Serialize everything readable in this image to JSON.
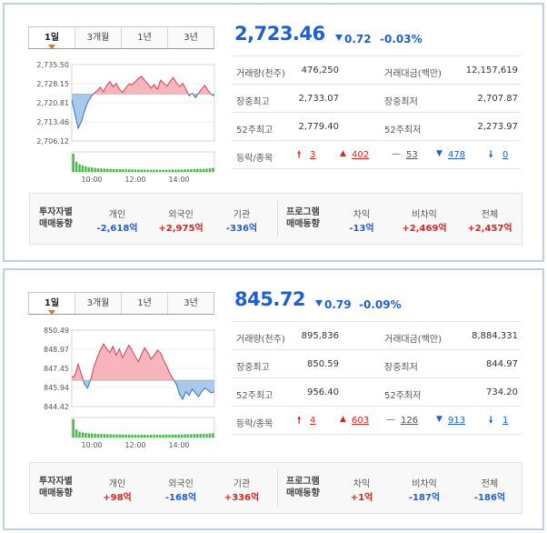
{
  "panels": [
    {
      "tabs": [
        "1일",
        "3개월",
        "1년",
        "3년"
      ],
      "price": "2,723.46",
      "change": "0.72",
      "change_pct": "-0.03%",
      "stats": {
        "volume_label": "거래량(천주)",
        "volume": "476,250",
        "amount_label": "거래대금(백만)",
        "amount": "12,157,619",
        "day_high_label": "장중최고",
        "day_high": "2,733.07",
        "day_low_label": "장중최저",
        "day_low": "2,707.87",
        "w52_high_label": "52주최고",
        "w52_high": "2,779.40",
        "w52_low_label": "52주최저",
        "w52_low": "2,273.97",
        "adv_label": "등락/종목",
        "upper_limit": "3",
        "up": "402",
        "flat": "53",
        "down": "478",
        "lower_limit": "0"
      },
      "investor": {
        "title1": "투자자별",
        "title2": "매매동향",
        "indiv_label": "개인",
        "indiv": "-2,618억",
        "foreign_label": "외국인",
        "foreign": "+2,975억",
        "inst_label": "기관",
        "inst": "-336억",
        "prog1": "프로그램",
        "prog2": "매매동향",
        "arb_label": "차익",
        "arb": "-13억",
        "nonarb_label": "비차익",
        "nonarb": "+2,469억",
        "total_label": "전체",
        "total": "+2,457억"
      },
      "chart_data": {
        "type": "area",
        "y_ticks": [
          "2,735.50",
          "2,728.15",
          "2,720.81",
          "2,713.46",
          "2,706.12"
        ],
        "ylim": [
          2706.12,
          2735.5
        ],
        "baseline": 2724.18,
        "x_ticks": [
          "10:00",
          "12:00",
          "14:00"
        ],
        "values": [
          2722.0,
          2716.5,
          2711.0,
          2713.5,
          2717.5,
          2721.0,
          2723.0,
          2724.5,
          2725.5,
          2726.8,
          2725.0,
          2727.5,
          2729.0,
          2727.0,
          2728.2,
          2726.0,
          2724.8,
          2726.5,
          2728.0,
          2727.8,
          2728.9,
          2730.2,
          2731.0,
          2729.5,
          2728.0,
          2726.5,
          2727.8,
          2726.0,
          2729.5,
          2728.4,
          2727.2,
          2729.0,
          2730.5,
          2728.5,
          2727.0,
          2728.3,
          2726.0,
          2723.5,
          2724.5,
          2722.8,
          2724.5,
          2726.2,
          2727.5,
          2725.5,
          2724.0,
          2723.5
        ],
        "volume": [
          1.0,
          0.55,
          0.42,
          0.35,
          0.3,
          0.26,
          0.24,
          0.22,
          0.2,
          0.19,
          0.18,
          0.17,
          0.17,
          0.16,
          0.16,
          0.15,
          0.15,
          0.14,
          0.14,
          0.14,
          0.13,
          0.13,
          0.13,
          0.13,
          0.12,
          0.12,
          0.12,
          0.12,
          0.12,
          0.12,
          0.12,
          0.12,
          0.13,
          0.13,
          0.13,
          0.13,
          0.14,
          0.14,
          0.15,
          0.15,
          0.16,
          0.16,
          0.17,
          0.18,
          0.2,
          0.22
        ]
      }
    },
    {
      "tabs": [
        "1일",
        "3개월",
        "1년",
        "3년"
      ],
      "price": "845.72",
      "change": "0.79",
      "change_pct": "-0.09%",
      "stats": {
        "volume_label": "거래량(천주)",
        "volume": "895,836",
        "amount_label": "거래대금(백만)",
        "amount": "8,884,331",
        "day_high_label": "장중최고",
        "day_high": "850.59",
        "day_low_label": "장중최저",
        "day_low": "844.97",
        "w52_high_label": "52주최고",
        "w52_high": "956.40",
        "w52_low_label": "52주최저",
        "w52_low": "734.20",
        "adv_label": "등락/종목",
        "upper_limit": "4",
        "up": "603",
        "flat": "126",
        "down": "913",
        "lower_limit": "1"
      },
      "investor": {
        "title1": "투자자별",
        "title2": "매매동향",
        "indiv_label": "개인",
        "indiv": "+98억",
        "foreign_label": "외국인",
        "foreign": "-168억",
        "inst_label": "기관",
        "inst": "+336억",
        "prog1": "프로그램",
        "prog2": "매매동향",
        "arb_label": "차익",
        "arb": "+1억",
        "nonarb_label": "비차익",
        "nonarb": "-187억",
        "total_label": "전체",
        "total": "-186억"
      },
      "chart_data": {
        "type": "area",
        "y_ticks": [
          "850.49",
          "848.97",
          "847.45",
          "845.94",
          "844.42"
        ],
        "ylim": [
          844.42,
          850.49
        ],
        "baseline": 846.51,
        "x_ticks": [
          "10:00",
          "12:00",
          "14:00"
        ],
        "values": [
          846.7,
          846.9,
          847.8,
          847.0,
          846.2,
          845.9,
          846.6,
          847.6,
          848.3,
          848.9,
          849.4,
          849.0,
          848.7,
          849.2,
          848.5,
          849.0,
          848.3,
          848.8,
          849.3,
          848.9,
          848.4,
          848.0,
          848.6,
          849.1,
          848.7,
          848.2,
          848.5,
          848.9,
          848.7,
          848.1,
          847.6,
          847.0,
          846.6,
          846.2,
          845.4,
          845.0,
          845.6,
          845.3,
          845.8,
          845.5,
          845.2,
          845.6,
          845.9,
          845.7,
          845.5,
          845.6
        ],
        "volume": [
          1.0,
          0.45,
          0.32,
          0.28,
          0.25,
          0.23,
          0.22,
          0.21,
          0.2,
          0.19,
          0.19,
          0.18,
          0.18,
          0.17,
          0.17,
          0.17,
          0.16,
          0.16,
          0.16,
          0.16,
          0.15,
          0.15,
          0.15,
          0.15,
          0.15,
          0.15,
          0.15,
          0.15,
          0.15,
          0.15,
          0.16,
          0.16,
          0.16,
          0.17,
          0.17,
          0.17,
          0.18,
          0.18,
          0.18,
          0.19,
          0.19,
          0.2,
          0.2,
          0.21,
          0.22,
          0.24
        ]
      }
    }
  ]
}
